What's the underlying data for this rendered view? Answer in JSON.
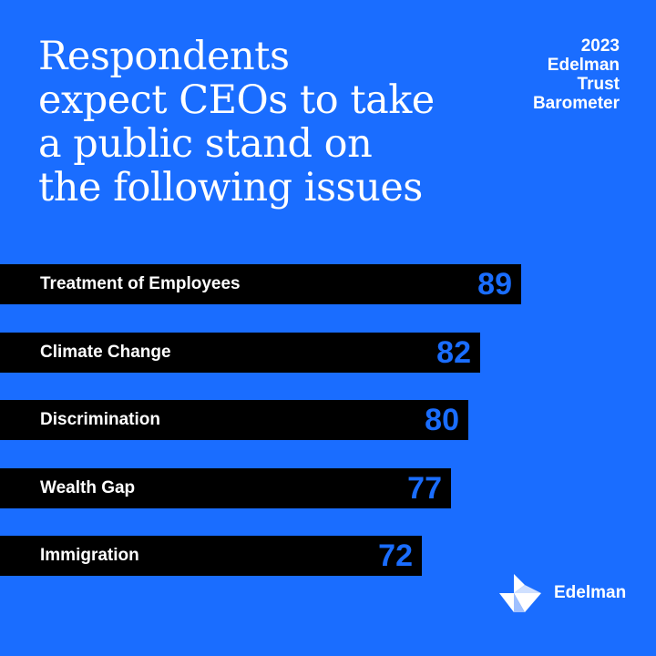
{
  "header": {
    "title_lines": [
      "Respondents",
      "expect CEOs to take",
      "a public stand on",
      "the following issues"
    ],
    "brand_lines": [
      "2023",
      "Edelman",
      "Trust",
      "Barometer"
    ]
  },
  "logo": {
    "text": "Edelman",
    "icon": "edelman-logo-icon"
  },
  "colors": {
    "background": "#1a6dff",
    "bar": "#000000",
    "value": "#1a6dff",
    "text": "#ffffff"
  },
  "chart_data": {
    "type": "bar",
    "orientation": "horizontal",
    "title": "Respondents expect CEOs to take a public stand on the following issues",
    "categories": [
      "Treatment of Employees",
      "Climate Change",
      "Discrimination",
      "Wealth Gap",
      "Immigration"
    ],
    "values": [
      89,
      82,
      80,
      77,
      72
    ],
    "unit": "percent",
    "xlim": [
      0,
      100
    ],
    "grid": false,
    "legend": "none"
  }
}
